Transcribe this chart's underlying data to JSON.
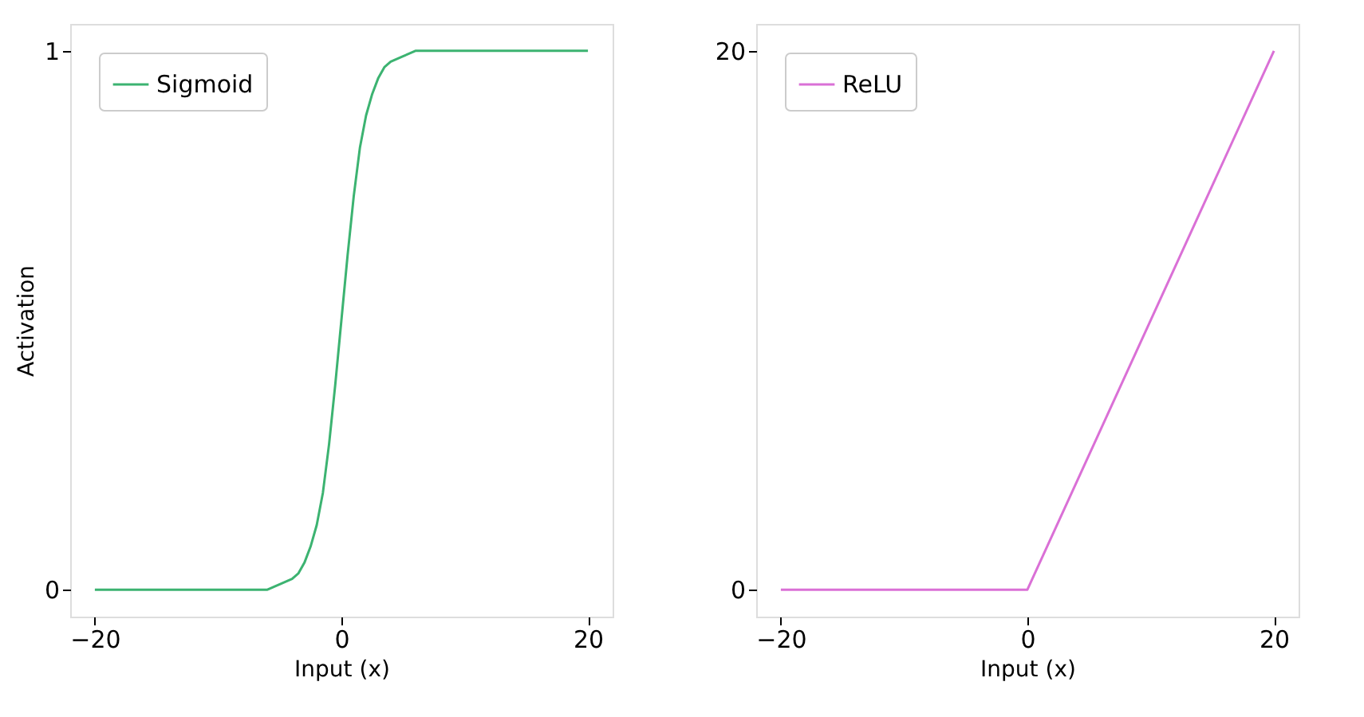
{
  "chart_data": [
    {
      "type": "line",
      "xlabel": "Input (x)",
      "ylabel": "Activation",
      "xlim": [
        -22,
        22
      ],
      "ylim": [
        -0.05,
        1.05
      ],
      "xticks": [
        -20,
        0,
        20
      ],
      "yticks": [
        0,
        1
      ],
      "grid": false,
      "legend": "top left",
      "x": [
        -20,
        -10,
        -7,
        -6,
        -5,
        -4,
        -3.5,
        -3,
        -2.5,
        -2,
        -1.5,
        -1,
        -0.5,
        0,
        0.5,
        1,
        1.5,
        2,
        2.5,
        3,
        3.5,
        4,
        5,
        6,
        7,
        10,
        20
      ],
      "series": [
        {
          "name": "Sigmoid",
          "color": "#3cb371",
          "values": [
            0,
            0,
            0,
            0,
            0.01,
            0.02,
            0.03,
            0.05,
            0.08,
            0.12,
            0.18,
            0.27,
            0.38,
            0.5,
            0.62,
            0.73,
            0.82,
            0.88,
            0.92,
            0.95,
            0.97,
            0.98,
            0.99,
            1,
            1,
            1,
            1
          ]
        }
      ]
    },
    {
      "type": "line",
      "xlabel": "Input (x)",
      "xlim": [
        -22,
        22
      ],
      "ylim": [
        -1,
        21
      ],
      "xticks": [
        -20,
        0,
        20
      ],
      "yticks": [
        0,
        20
      ],
      "grid": false,
      "legend": "top left",
      "x": [
        -20,
        0,
        20
      ],
      "series": [
        {
          "name": "ReLU",
          "color": "#da70d6",
          "values": [
            0,
            0,
            20
          ]
        }
      ]
    }
  ]
}
